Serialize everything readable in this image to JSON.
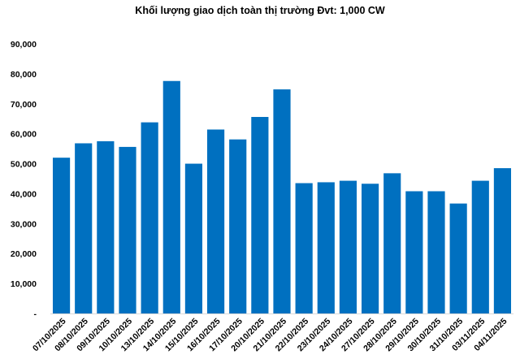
{
  "chart_data": {
    "type": "bar",
    "title": "Khối lượng giao dịch toàn thị trường Đvt: 1,000 CW",
    "xlabel": "",
    "ylabel": "",
    "ylim": [
      0,
      90000
    ],
    "yticks": [
      0,
      10000,
      20000,
      30000,
      40000,
      50000,
      60000,
      70000,
      80000,
      90000
    ],
    "ytick_labels": [
      "-",
      "10,000",
      "20,000",
      "30,000",
      "40,000",
      "50,000",
      "60,000",
      "70,000",
      "80,000",
      "90,000"
    ],
    "grid": false,
    "legend": "none",
    "bar_color": "#0070C0",
    "categories": [
      "07/10/2025",
      "08/10/2025",
      "09/10/2025",
      "10/10/2025",
      "13/10/2025",
      "14/10/2025",
      "15/10/2025",
      "16/10/2025",
      "17/10/2025",
      "20/10/2025",
      "21/10/2025",
      "22/10/2025",
      "23/10/2025",
      "24/10/2025",
      "27/10/2025",
      "28/10/2025",
      "29/10/2025",
      "30/10/2025",
      "31/10/2025",
      "03/11/2025",
      "04/11/2025"
    ],
    "values": [
      52000,
      56800,
      57500,
      55600,
      63800,
      77600,
      50000,
      61400,
      58100,
      65600,
      74800,
      43500,
      43800,
      44300,
      43300,
      46800,
      40800,
      40800,
      36700,
      44300,
      48500
    ]
  }
}
